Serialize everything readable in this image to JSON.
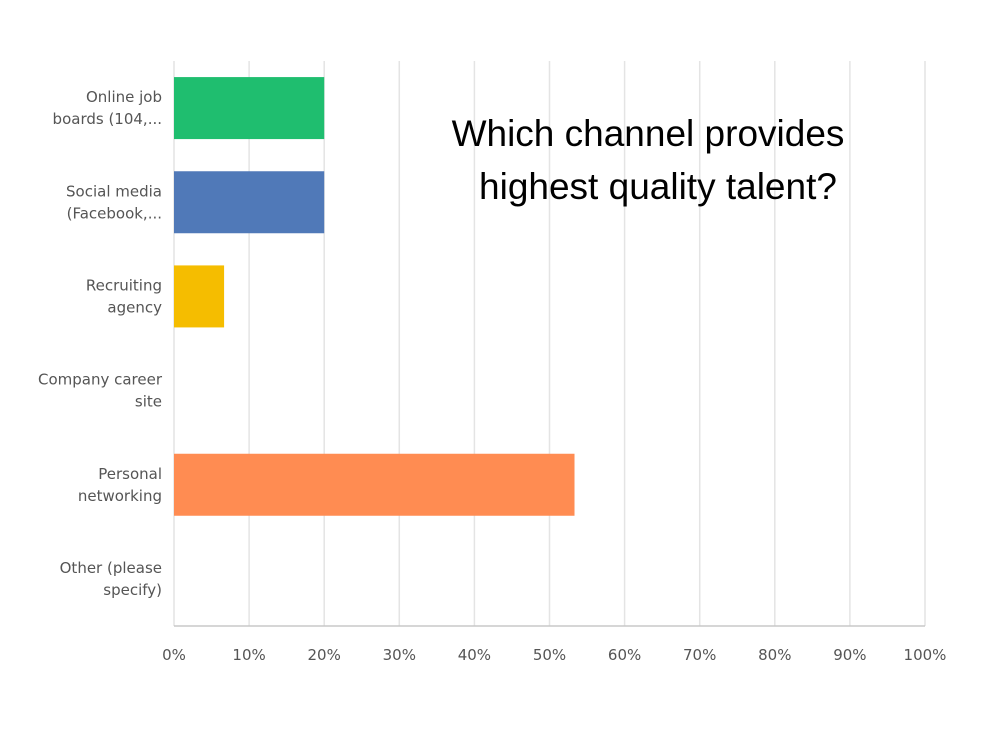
{
  "chart_data": {
    "type": "bar",
    "orientation": "horizontal",
    "title_lines": [
      "Which channel provides",
      "highest quality talent?"
    ],
    "categories": [
      [
        "Online job",
        "boards (104,..."
      ],
      [
        "Social media",
        "(Facebook,..."
      ],
      [
        "Recruiting",
        "agency"
      ],
      [
        "Company career",
        "site"
      ],
      [
        "Personal",
        "networking"
      ],
      [
        "Other (please",
        "specify)"
      ]
    ],
    "values": [
      20,
      20,
      6.67,
      0,
      53.33,
      0
    ],
    "colors": [
      "#1fbe6f",
      "#5079b8",
      "#f5bd00",
      "#9e9e9e",
      "#ff8c52",
      "#9e9e9e"
    ],
    "xlim": [
      0,
      100
    ],
    "x_ticks": [
      "0%",
      "10%",
      "20%",
      "30%",
      "40%",
      "50%",
      "60%",
      "70%",
      "80%",
      "90%",
      "100%"
    ],
    "grid": true,
    "unit": "%"
  }
}
